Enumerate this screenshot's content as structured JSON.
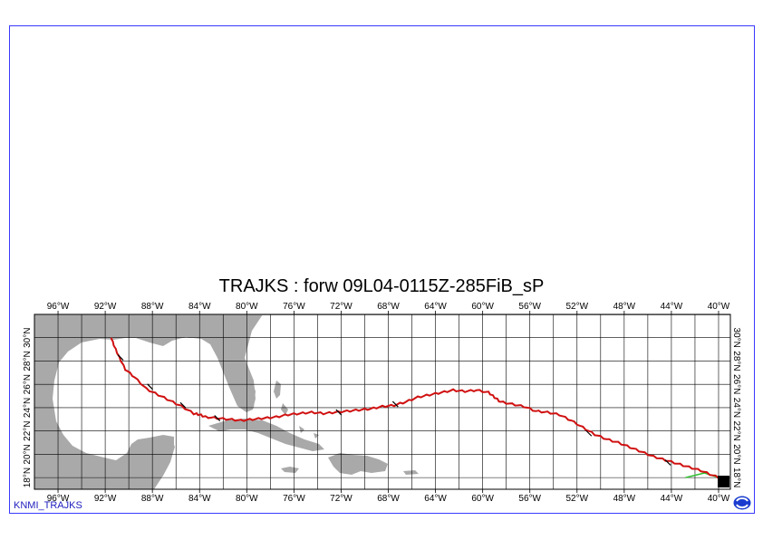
{
  "title": "TRAJKS : forw 09L04-0115Z-285FiB_sP",
  "credit": "KNMI_TRAJKS",
  "lon_labels": [
    "96°W",
    "92°W",
    "88°W",
    "84°W",
    "80°W",
    "76°W",
    "72°W",
    "68°W",
    "64°W",
    "60°W",
    "56°W",
    "52°W",
    "48°W",
    "44°W",
    "40°W"
  ],
  "lat_labels": [
    "18°N",
    "20°N",
    "22°N",
    "24°N",
    "26°N",
    "28°N",
    "30°N"
  ],
  "map": {
    "projection": "equirectangular",
    "lon_range": [
      -98,
      -39
    ],
    "lat_range": [
      17,
      32
    ],
    "grid_lon_step": 2,
    "grid_lat_step": 2,
    "land_color": "#a9a9a9",
    "track_color": "#d01010",
    "secondary_track_color": "#30c030"
  },
  "track": {
    "name": "",
    "points": [
      [
        -39.5,
        17.8
      ],
      [
        -40.5,
        18.2
      ],
      [
        -41.5,
        18.6
      ],
      [
        -42.5,
        18.9
      ],
      [
        -43.5,
        19.2
      ],
      [
        -44.5,
        19.5
      ],
      [
        -45.5,
        19.8
      ],
      [
        -46.5,
        20.2
      ],
      [
        -47.5,
        20.6
      ],
      [
        -48.5,
        21.0
      ],
      [
        -49.5,
        21.3
      ],
      [
        -50.5,
        21.7
      ],
      [
        -51.5,
        22.3
      ],
      [
        -52.5,
        22.9
      ],
      [
        -53.5,
        23.4
      ],
      [
        -54.5,
        23.6
      ],
      [
        -55.5,
        23.7
      ],
      [
        -56.5,
        24.1
      ],
      [
        -57.5,
        24.3
      ],
      [
        -58.5,
        24.5
      ],
      [
        -59.0,
        24.9
      ],
      [
        -59.5,
        25.3
      ],
      [
        -60.5,
        25.5
      ],
      [
        -61.5,
        25.4
      ],
      [
        -62.5,
        25.5
      ],
      [
        -63.5,
        25.3
      ],
      [
        -64.5,
        25.1
      ],
      [
        -65.5,
        24.9
      ],
      [
        -66.5,
        24.5
      ],
      [
        -67.5,
        24.2
      ],
      [
        -68.5,
        24.1
      ],
      [
        -69.5,
        23.9
      ],
      [
        -70.5,
        23.8
      ],
      [
        -71.5,
        23.7
      ],
      [
        -72.5,
        23.6
      ],
      [
        -73.5,
        23.5
      ],
      [
        -74.5,
        23.6
      ],
      [
        -75.5,
        23.5
      ],
      [
        -76.5,
        23.4
      ],
      [
        -77.5,
        23.2
      ],
      [
        -78.5,
        23.1
      ],
      [
        -79.5,
        23.0
      ],
      [
        -80.5,
        22.9
      ],
      [
        -81.5,
        23.0
      ],
      [
        -82.5,
        23.1
      ],
      [
        -83.5,
        23.2
      ],
      [
        -84.0,
        23.4
      ],
      [
        -84.5,
        23.5
      ],
      [
        -85.5,
        24.1
      ],
      [
        -86.5,
        24.6
      ],
      [
        -87.5,
        25.1
      ],
      [
        -88.5,
        25.6
      ],
      [
        -89.5,
        26.6
      ],
      [
        -90.3,
        27.3
      ],
      [
        -90.8,
        28.3
      ],
      [
        -91.2,
        29.2
      ],
      [
        -91.5,
        30.0
      ]
    ],
    "markers": [
      [
        -90.7,
        28.3
      ],
      [
        -88.2,
        25.8
      ],
      [
        -85.4,
        24.2
      ],
      [
        -82.5,
        23.1
      ],
      [
        -72.2,
        23.6
      ],
      [
        -67.4,
        24.3
      ],
      [
        -51.0,
        21.8
      ],
      [
        -44.3,
        19.3
      ]
    ],
    "secondary": [
      [
        -39.6,
        17.8
      ],
      [
        -40.3,
        18.1
      ],
      [
        -41.2,
        18.4
      ],
      [
        -42.0,
        18.2
      ],
      [
        -42.8,
        18.0
      ]
    ]
  }
}
